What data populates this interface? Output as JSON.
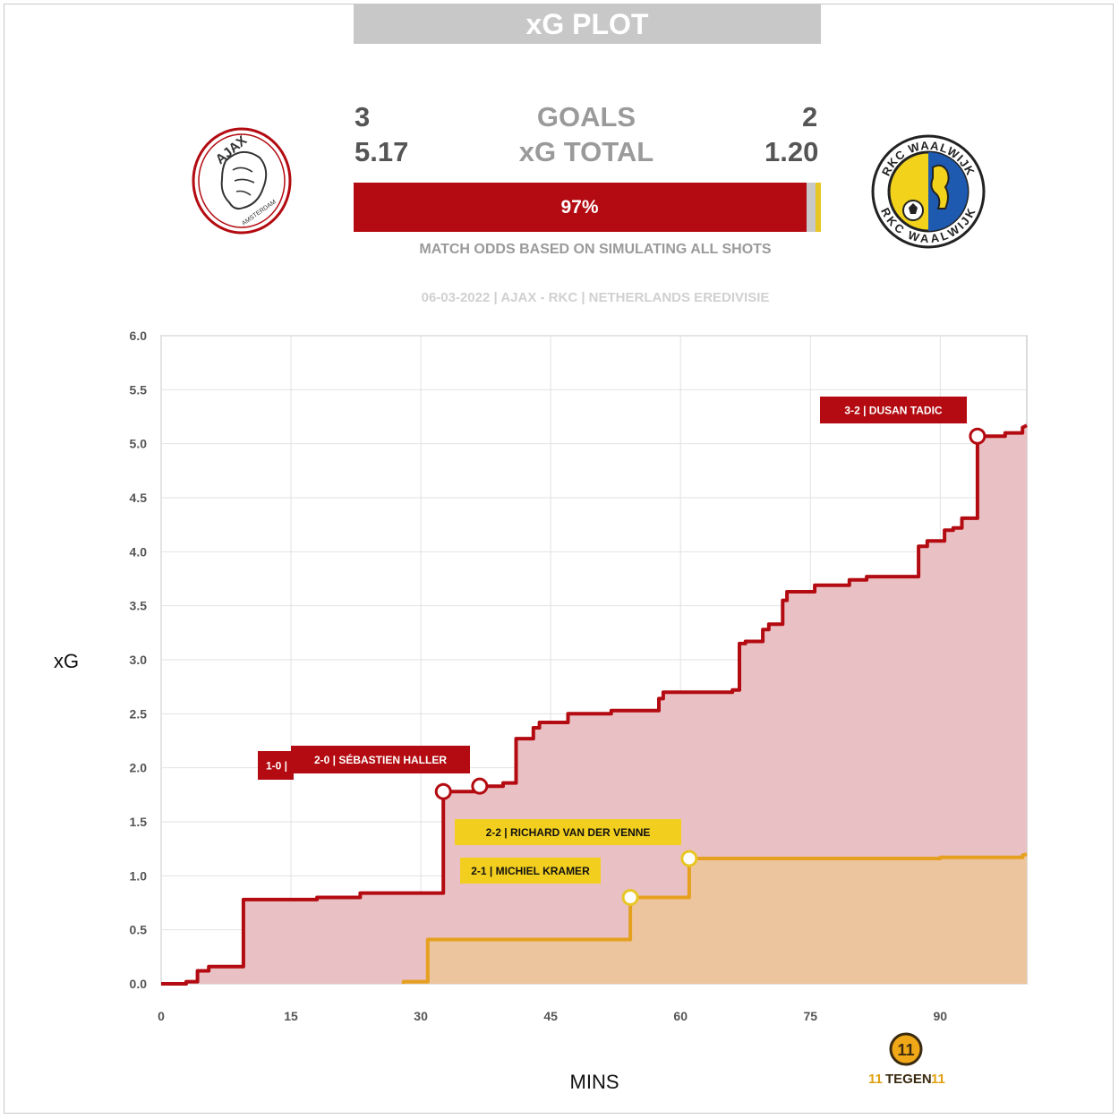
{
  "header": {
    "title": "xG PLOT"
  },
  "score": {
    "home_goals": "3",
    "goals_label": "GOALS",
    "away_goals": "2",
    "home_xg": "5.17",
    "xg_label": "xG TOTAL",
    "away_xg": "1.20"
  },
  "odds": {
    "home_pct_label": "97%",
    "home": 0.97,
    "draw": 0.02,
    "away": 0.01,
    "note": "MATCH ODDS BASED ON SIMULATING ALL SHOTS"
  },
  "match_info": "06-03-2022 | AJAX - RKC | NETHERLANDS EREDIVISIE",
  "teams": {
    "home": {
      "badge_text": "AJAX",
      "badge_subtext": "AMSTERDAM",
      "color": "#b30b11"
    },
    "away": {
      "badge_text": "RKC WAALWIJK",
      "color": "#e8b020"
    }
  },
  "brand": {
    "mark": "11",
    "name": "TEGEN"
  },
  "chart_data": {
    "type": "line",
    "step": true,
    "xlabel": "MINS",
    "ylabel": "xG",
    "xlim": [
      0,
      100
    ],
    "ylim": [
      0,
      6
    ],
    "xticks": [
      0,
      15,
      30,
      45,
      60,
      75,
      90
    ],
    "yticks": [
      "0.0",
      "0.5",
      "1.0",
      "1.5",
      "2.0",
      "2.5",
      "3.0",
      "3.5",
      "4.0",
      "4.5",
      "5.0",
      "5.5",
      "6.0"
    ],
    "grid": true,
    "series": [
      {
        "color": "#b30b11",
        "fill": "#e9c0c3",
        "points": [
          [
            0,
            0
          ],
          [
            2.9,
            0
          ],
          [
            2.9,
            0.02
          ],
          [
            4.2,
            0.02
          ],
          [
            4.2,
            0.12
          ],
          [
            5.5,
            0.12
          ],
          [
            5.5,
            0.16
          ],
          [
            9.5,
            0.16
          ],
          [
            9.5,
            0.78
          ],
          [
            18,
            0.78
          ],
          [
            18,
            0.8
          ],
          [
            23,
            0.8
          ],
          [
            23,
            0.84
          ],
          [
            32.6,
            0.84
          ],
          [
            32.6,
            1.78
          ],
          [
            36.8,
            1.78
          ],
          [
            36.8,
            1.83
          ],
          [
            39.5,
            1.83
          ],
          [
            39.5,
            1.86
          ],
          [
            41,
            1.86
          ],
          [
            41,
            2.27
          ],
          [
            43,
            2.27
          ],
          [
            43,
            2.37
          ],
          [
            43.7,
            2.37
          ],
          [
            43.7,
            2.42
          ],
          [
            47,
            2.42
          ],
          [
            47,
            2.5
          ],
          [
            52,
            2.5
          ],
          [
            52,
            2.53
          ],
          [
            57.5,
            2.53
          ],
          [
            57.5,
            2.64
          ],
          [
            58,
            2.64
          ],
          [
            58,
            2.7
          ],
          [
            66,
            2.7
          ],
          [
            66,
            2.72
          ],
          [
            66.8,
            2.72
          ],
          [
            66.8,
            3.15
          ],
          [
            67.5,
            3.15
          ],
          [
            67.5,
            3.17
          ],
          [
            69.5,
            3.17
          ],
          [
            69.5,
            3.28
          ],
          [
            70.2,
            3.28
          ],
          [
            70.2,
            3.33
          ],
          [
            71.8,
            3.33
          ],
          [
            71.8,
            3.55
          ],
          [
            72.3,
            3.55
          ],
          [
            72.3,
            3.63
          ],
          [
            75.5,
            3.63
          ],
          [
            75.5,
            3.69
          ],
          [
            79.5,
            3.69
          ],
          [
            79.5,
            3.74
          ],
          [
            81.5,
            3.74
          ],
          [
            81.5,
            3.77
          ],
          [
            87.5,
            3.77
          ],
          [
            87.5,
            4.05
          ],
          [
            88.5,
            4.05
          ],
          [
            88.5,
            4.1
          ],
          [
            90.5,
            4.1
          ],
          [
            90.5,
            4.2
          ],
          [
            91.5,
            4.2
          ],
          [
            91.5,
            4.22
          ],
          [
            92.5,
            4.22
          ],
          [
            92.5,
            4.31
          ],
          [
            94.3,
            4.31
          ],
          [
            94.3,
            5.07
          ],
          [
            97.5,
            5.07
          ],
          [
            97.5,
            5.1
          ],
          [
            99.5,
            5.1
          ],
          [
            99.5,
            5.15
          ],
          [
            100,
            5.17
          ]
        ]
      },
      {
        "color": "#e6a020",
        "fill": "#ecc59b",
        "points": [
          [
            28,
            0
          ],
          [
            28,
            0.02
          ],
          [
            30.8,
            0.02
          ],
          [
            30.8,
            0.41
          ],
          [
            54.2,
            0.41
          ],
          [
            54.2,
            0.8
          ],
          [
            61,
            0.8
          ],
          [
            61,
            1.16
          ],
          [
            90,
            1.16
          ],
          [
            90,
            1.17
          ],
          [
            99.5,
            1.17
          ],
          [
            99.5,
            1.19
          ],
          [
            100,
            1.2
          ]
        ]
      }
    ],
    "goals": [
      {
        "team": "home",
        "minute": 32.6,
        "xg": 1.78
      },
      {
        "team": "home",
        "minute": 36.8,
        "xg": 1.83
      },
      {
        "team": "away",
        "minute": 54.2,
        "xg": 0.8
      },
      {
        "team": "away",
        "minute": 61,
        "xg": 1.16
      },
      {
        "team": "home",
        "minute": 94.3,
        "xg": 5.07
      }
    ],
    "annotations": [
      {
        "text": "1-0 |",
        "team": "home"
      },
      {
        "text": "2-0 | SÉBASTIEN HALLER",
        "team": "home"
      },
      {
        "text": "2-2 | RICHARD VAN DER VENNE",
        "team": "away"
      },
      {
        "text": "2-1 | MICHIEL KRAMER",
        "team": "away"
      },
      {
        "text": "3-2 | DUSAN TADIC",
        "team": "home"
      }
    ]
  }
}
